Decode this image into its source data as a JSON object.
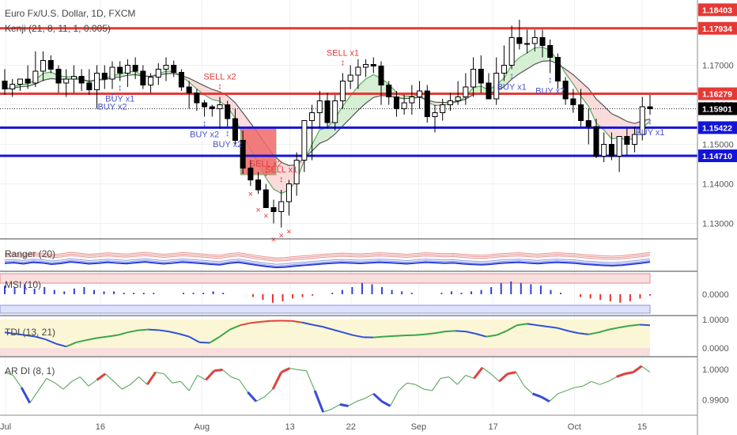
{
  "header": {
    "symbol": "Euro Fx/U.S. Dollar, 1D, FXCM",
    "indicator": "Kenji (21, 8, 11, 1, 0.005)"
  },
  "colors": {
    "up_candle": "#ffffff",
    "down_candle": "#000000",
    "resistance_red": "#e53935",
    "support_blue": "#1414d8",
    "buy_signal": "#4a56c8",
    "sell_signal": "#e33b3b",
    "last_price_tag": "#000000"
  },
  "chart_data": [
    {
      "type": "candlestick",
      "title": "Euro Fx/U.S. Dollar, 1D, FXCM",
      "x_tick_labels": [
        "Jul",
        "16",
        "Aug",
        "13",
        "22",
        "Sep",
        "17",
        "Oct",
        "15"
      ],
      "y_tick_labels": [
        "1.13000",
        "1.14000",
        "1.15000",
        "1.16000",
        "1.17000"
      ],
      "ylim": [
        1.1265,
        1.1865
      ],
      "last_price": 1.15901,
      "price_tags": [
        {
          "value": "1.18403",
          "price": 1.18403,
          "color": "#e53935"
        },
        {
          "value": "1.17934",
          "price": 1.17934,
          "color": "#e53935",
          "line": true
        },
        {
          "value": "1.16279",
          "price": 1.16279,
          "color": "#e53935",
          "line": true
        },
        {
          "value": "1.15901",
          "price": 1.15901,
          "color": "#000000"
        },
        {
          "value": "1.15422",
          "price": 1.15422,
          "color": "#1414d8",
          "line": true
        },
        {
          "value": "1.14710",
          "price": 1.1471,
          "color": "#1414d8",
          "line": true
        }
      ],
      "series": [
        {
          "type": "candles",
          "open": [
            1.166,
            1.164,
            1.1652,
            1.1665,
            1.1655,
            1.1685,
            1.1712,
            1.169,
            1.1655,
            1.1665,
            1.1672,
            1.1655,
            1.1638,
            1.168,
            1.1665,
            1.1695,
            1.168,
            1.17,
            1.1685,
            1.165,
            1.167,
            1.169,
            1.17,
            1.1682,
            1.1645,
            1.163,
            1.1605,
            1.1595,
            1.159,
            1.16,
            1.1565,
            1.151,
            1.144,
            1.141,
            1.1385,
            1.134,
            1.133,
            1.1355,
            1.14,
            1.146,
            1.156,
            1.158,
            1.161,
            1.1555,
            1.161,
            1.166,
            1.1675,
            1.1695,
            1.1702,
            1.1698,
            1.165,
            1.162,
            1.159,
            1.1605,
            1.162,
            1.1635,
            1.157,
            1.158,
            1.16,
            1.161,
            1.162,
            1.1645,
            1.169,
            1.1655,
            1.1615,
            1.168,
            1.17,
            1.177,
            1.1755,
            1.1755,
            1.177,
            1.175,
            1.172,
            1.166,
            1.1615,
            1.16,
            1.156,
            1.1545,
            1.147,
            1.15,
            1.147,
            1.152,
            1.15,
            1.1525,
            1.1595
          ],
          "high": [
            1.169,
            1.1665,
            1.1665,
            1.17,
            1.1735,
            1.1735,
            1.1725,
            1.17,
            1.169,
            1.17,
            1.169,
            1.169,
            1.17,
            1.17,
            1.171,
            1.171,
            1.1715,
            1.172,
            1.17,
            1.168,
            1.1705,
            1.172,
            1.1712,
            1.169,
            1.166,
            1.164,
            1.1612,
            1.16,
            1.162,
            1.161,
            1.159,
            1.1535,
            1.146,
            1.143,
            1.14,
            1.136,
            1.1385,
            1.141,
            1.148,
            1.156,
            1.16,
            1.1635,
            1.163,
            1.1625,
            1.168,
            1.17,
            1.1715,
            1.1715,
            1.172,
            1.171,
            1.166,
            1.1635,
            1.1625,
            1.165,
            1.166,
            1.165,
            1.16,
            1.1615,
            1.163,
            1.166,
            1.168,
            1.172,
            1.1725,
            1.168,
            1.172,
            1.175,
            1.18,
            1.1815,
            1.179,
            1.179,
            1.179,
            1.1765,
            1.173,
            1.167,
            1.164,
            1.164,
            1.159,
            1.1565,
            1.153,
            1.153,
            1.152,
            1.154,
            1.1545,
            1.162,
            1.1625
          ],
          "low": [
            1.1625,
            1.162,
            1.1635,
            1.164,
            1.1645,
            1.166,
            1.168,
            1.163,
            1.162,
            1.163,
            1.1635,
            1.1625,
            1.159,
            1.164,
            1.164,
            1.166,
            1.1645,
            1.1665,
            1.164,
            1.163,
            1.165,
            1.166,
            1.167,
            1.1635,
            1.159,
            1.1585,
            1.157,
            1.157,
            1.154,
            1.1545,
            1.15,
            1.1425,
            1.1395,
            1.1375,
            1.134,
            1.13,
            1.129,
            1.132,
            1.137,
            1.143,
            1.146,
            1.154,
            1.154,
            1.1535,
            1.159,
            1.164,
            1.164,
            1.167,
            1.168,
            1.16,
            1.16,
            1.157,
            1.1575,
            1.1575,
            1.159,
            1.1555,
            1.153,
            1.156,
            1.1585,
            1.16,
            1.16,
            1.162,
            1.163,
            1.1615,
            1.16,
            1.166,
            1.169,
            1.174,
            1.173,
            1.1735,
            1.172,
            1.168,
            1.164,
            1.16,
            1.158,
            1.1545,
            1.15,
            1.1465,
            1.1455,
            1.146,
            1.143,
            1.147,
            1.148,
            1.151,
            1.1575
          ],
          "close": [
            1.164,
            1.1652,
            1.1665,
            1.1655,
            1.1685,
            1.1712,
            1.169,
            1.1655,
            1.1665,
            1.1672,
            1.1655,
            1.1638,
            1.168,
            1.1665,
            1.1695,
            1.168,
            1.17,
            1.1685,
            1.165,
            1.167,
            1.169,
            1.17,
            1.1682,
            1.1645,
            1.163,
            1.1605,
            1.1595,
            1.159,
            1.16,
            1.1565,
            1.151,
            1.144,
            1.141,
            1.1385,
            1.134,
            1.133,
            1.1355,
            1.14,
            1.146,
            1.156,
            1.158,
            1.161,
            1.1555,
            1.161,
            1.166,
            1.1675,
            1.1695,
            1.1702,
            1.1698,
            1.165,
            1.162,
            1.159,
            1.1605,
            1.162,
            1.1635,
            1.157,
            1.158,
            1.16,
            1.161,
            1.162,
            1.1645,
            1.169,
            1.1655,
            1.1615,
            1.168,
            1.17,
            1.177,
            1.1755,
            1.1755,
            1.177,
            1.175,
            1.172,
            1.166,
            1.1615,
            1.16,
            1.156,
            1.1545,
            1.147,
            1.15,
            1.147,
            1.152,
            1.15,
            1.1525,
            1.1595,
            1.159
          ]
        }
      ],
      "signals": [
        {
          "label": "BUY x1",
          "bar": 15,
          "kind": "buy"
        },
        {
          "label": "BUY x2",
          "bar": 14,
          "kind": "buy"
        },
        {
          "label": "BUY x2",
          "bar": 26,
          "kind": "buy"
        },
        {
          "label": "BUY x2",
          "bar": 29,
          "kind": "buy"
        },
        {
          "label": "BUY x1",
          "bar": 66,
          "kind": "buy"
        },
        {
          "label": "BUY x2",
          "bar": 71,
          "kind": "buy"
        },
        {
          "label": "BUY x1",
          "bar": 86,
          "kind": "buy"
        },
        {
          "label": "SELL x2",
          "bar": 28,
          "kind": "sell"
        },
        {
          "label": "SELL x2",
          "bar": 34,
          "kind": "sell"
        },
        {
          "label": "SELL x1",
          "bar": 36,
          "kind": "sell"
        },
        {
          "label": "SELL x1",
          "bar": 44,
          "kind": "sell"
        }
      ]
    },
    {
      "type": "line",
      "title": "Ranger (20)",
      "series": [
        {
          "values": [
            0.55,
            0.58,
            0.52,
            0.6,
            0.57,
            0.5,
            0.54,
            0.62,
            0.58,
            0.52,
            0.55,
            0.6,
            0.56,
            0.53,
            0.58,
            0.62,
            0.57,
            0.52,
            0.56,
            0.61,
            0.58,
            0.54,
            0.5,
            0.47,
            0.55,
            0.6,
            0.52,
            0.45,
            0.38,
            0.33,
            0.35,
            0.4,
            0.44,
            0.48,
            0.52,
            0.55,
            0.58,
            0.56,
            0.54,
            0.57,
            0.6,
            0.58,
            0.55,
            0.52,
            0.56,
            0.6,
            0.58,
            0.55,
            0.57,
            0.52,
            0.49,
            0.47,
            0.5,
            0.55,
            0.58,
            0.6,
            0.56,
            0.53,
            0.57,
            0.6,
            0.58,
            0.55,
            0.5,
            0.47,
            0.44,
            0.42,
            0.45,
            0.5,
            0.55,
            0.62
          ]
        }
      ]
    },
    {
      "type": "bar",
      "title": "MSI (10)",
      "y_tick_labels": [
        "0.0000"
      ],
      "values": [
        0.6,
        0.5,
        0.7,
        0.4,
        0.5,
        0.3,
        0.2,
        0.4,
        0.5,
        0.3,
        0.2,
        0.2,
        0.1,
        0.1,
        0.1,
        0.1,
        0.0,
        0.0,
        0.1,
        0.1,
        0.1,
        0.2,
        0.1,
        0.0,
        0.0,
        -0.2,
        -0.4,
        -0.6,
        -0.5,
        -0.3,
        -0.2,
        -0.1,
        0.0,
        0.1,
        0.3,
        0.5,
        0.8,
        0.7,
        0.5,
        0.3,
        0.2,
        0.1,
        0.0,
        0.0,
        0.1,
        0.2,
        0.1,
        0.2,
        0.3,
        0.5,
        0.8,
        0.9,
        0.8,
        0.7,
        0.6,
        0.3,
        0.1,
        0.0,
        -0.2,
        -0.3,
        -0.4,
        -0.5,
        -0.6,
        -0.5,
        -0.3,
        -0.1
      ]
    },
    {
      "type": "line",
      "title": "TDI (13, 21)",
      "y_tick_labels": [
        "1.0000",
        "0.0000"
      ],
      "ylim": [
        -0.2,
        1.1
      ],
      "series": [
        {
          "values": [
            0.55,
            0.5,
            0.45,
            0.4,
            0.3,
            0.15,
            0.05,
            0.2,
            0.28,
            0.35,
            0.4,
            0.45,
            0.55,
            0.62,
            0.65,
            0.63,
            0.58,
            0.5,
            0.4,
            0.2,
            0.18,
            0.4,
            0.65,
            0.8,
            0.88,
            0.92,
            0.95,
            0.96,
            0.95,
            0.9,
            0.82,
            0.75,
            0.65,
            0.55,
            0.45,
            0.38,
            0.37,
            0.4,
            0.42,
            0.44,
            0.45,
            0.48,
            0.52,
            0.58,
            0.6,
            0.58,
            0.5,
            0.4,
            0.45,
            0.6,
            0.8,
            0.85,
            0.8,
            0.75,
            0.7,
            0.6,
            0.52,
            0.48,
            0.55,
            0.65,
            0.72,
            0.78,
            0.82,
            0.8
          ]
        }
      ]
    },
    {
      "type": "line",
      "title": "AR DI (8, 1)",
      "y_tick_labels": [
        "1.0000",
        "0.9900"
      ],
      "ylim": [
        0.985,
        1.002
      ],
      "series": [
        {
          "values": [
            0.999,
            0.998,
            0.994,
            0.989,
            0.993,
            0.997,
            0.9955,
            0.9935,
            0.996,
            0.9975,
            0.9945,
            0.9965,
            0.9985,
            0.996,
            0.9935,
            0.995,
            0.9975,
            0.995,
            0.999,
            0.9985,
            0.9955,
            0.996,
            0.993,
            0.998,
            0.9965,
            0.9995,
            0.9998,
            0.9975,
            0.9965,
            0.9925,
            0.9895,
            0.991,
            0.9935,
            0.999,
            1.0003,
            0.9998,
            0.9995,
            0.993,
            0.986,
            0.987,
            0.9885,
            0.988,
            0.9895,
            0.9905,
            0.992,
            0.9895,
            0.988,
            0.993,
            0.9955,
            0.995,
            0.9935,
            0.993,
            0.997,
            0.9975,
            0.995,
            0.998,
            0.997,
            1.0005,
            0.9985,
            0.996,
            0.9985,
            0.999,
            0.9945,
            0.992,
            0.991,
            0.9895,
            0.992,
            0.993,
            0.994,
            0.9945,
            0.996,
            0.995,
            0.996,
            0.9975,
            0.9985,
            0.999,
            1.001,
            0.999
          ]
        }
      ]
    }
  ]
}
